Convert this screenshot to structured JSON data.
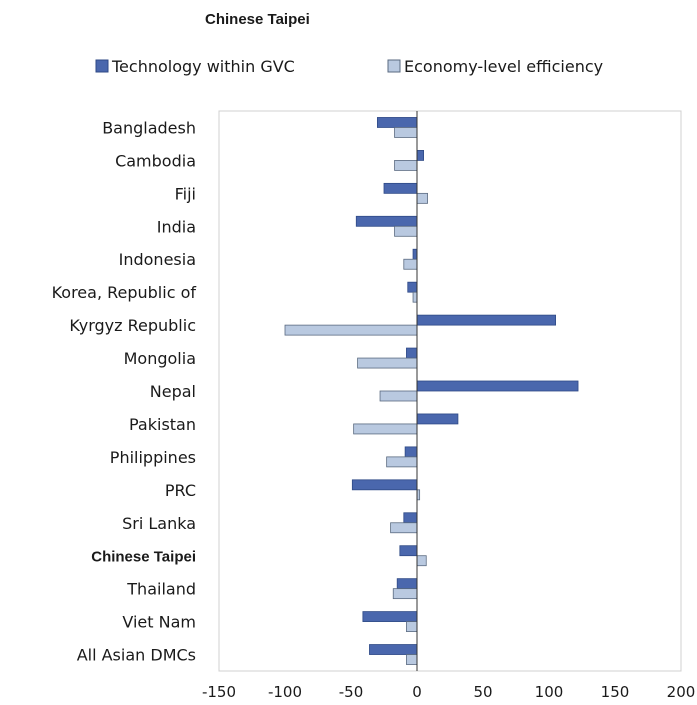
{
  "chart_data": {
    "type": "bar",
    "orientation": "horizontal",
    "title": "Chinese Taipei",
    "categories": [
      "Bangladesh",
      "Cambodia",
      "Fiji",
      "India",
      "Indonesia",
      "Korea, Republic of",
      "Kyrgyz Republic",
      "Mongolia",
      "Nepal",
      "Pakistan",
      "Philippines",
      "PRC",
      "Sri Lanka",
      "Chinese Taipei",
      "Thailand",
      "Viet Nam",
      "All Asian DMCs"
    ],
    "highlight_category": "Chinese Taipei",
    "series": [
      {
        "name": "Technology within GVC",
        "color": "#4a67ad",
        "values": [
          -30,
          5,
          -25,
          -46,
          -3,
          -7,
          105,
          -8,
          122,
          31,
          -9,
          -49,
          -10,
          -13,
          -15,
          -41,
          -36
        ]
      },
      {
        "name": "Economy-level efficiency",
        "color": "#b9c9e0",
        "values": [
          -17,
          -17,
          8,
          -17,
          -10,
          -3,
          -100,
          -45,
          -28,
          -48,
          -23,
          2,
          -20,
          7,
          -18,
          -8,
          -8
        ]
      }
    ],
    "xlim": [
      -150,
      200
    ],
    "xticks": [
      -150,
      -100,
      -50,
      0,
      50,
      100,
      150,
      200
    ],
    "xlabel": "",
    "ylabel": "",
    "grid": false,
    "legend_position": "top",
    "legend_labels": [
      "Technology within GVC",
      "Economy-level efficiency"
    ]
  }
}
